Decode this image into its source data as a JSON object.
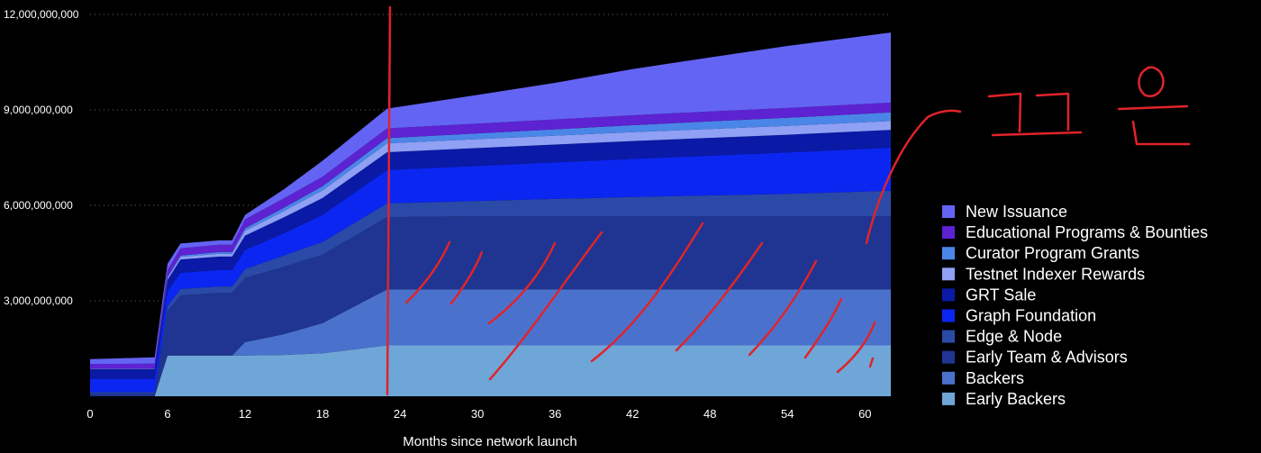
{
  "chart_data": {
    "type": "area",
    "stacked": true,
    "xlabel": "Months since network launch",
    "ylabel": "",
    "title": "",
    "xlim": [
      0,
      62
    ],
    "ylim": [
      0,
      12000000000
    ],
    "xticks": [
      0,
      6,
      12,
      18,
      24,
      30,
      36,
      42,
      48,
      54,
      60
    ],
    "yticks": [
      3000000000,
      6000000000,
      9000000000,
      12000000000
    ],
    "ytick_labels": [
      "3,000,000,000",
      "6,000,000,000",
      "9,000,000,000",
      "12,000,000,000"
    ],
    "grid": "horizontal dotted",
    "legend_position": "right",
    "x": [
      0,
      5,
      6,
      7,
      10,
      11,
      12,
      15,
      18,
      23,
      30,
      36,
      42,
      48,
      54,
      62
    ],
    "series": [
      {
        "name": "Early Backers",
        "color": "#6fa6d8",
        "values": [
          0,
          0,
          1280000000,
          1280000000,
          1280000000,
          1280000000,
          1280000000,
          1300000000,
          1350000000,
          1600000000,
          1600000000,
          1600000000,
          1600000000,
          1600000000,
          1600000000,
          1600000000
        ]
      },
      {
        "name": "Backers",
        "color": "#4a72cd",
        "values": [
          0,
          0,
          0,
          0,
          0,
          0,
          420000000,
          650000000,
          950000000,
          1760000000,
          1760000000,
          1760000000,
          1760000000,
          1760000000,
          1760000000,
          1760000000
        ]
      },
      {
        "name": "Early Team & Advisors",
        "color": "#1f3591",
        "values": [
          100000000,
          100000000,
          1400000000,
          1890000000,
          1970000000,
          1970000000,
          2020000000,
          2120000000,
          2150000000,
          2270000000,
          2300000000,
          2300000000,
          2300000000,
          2300000000,
          2300000000,
          2300000000
        ]
      },
      {
        "name": "Edge & Node",
        "color": "#2b4aa7",
        "values": [
          30000000,
          30000000,
          150000000,
          200000000,
          200000000,
          200000000,
          280000000,
          350000000,
          400000000,
          430000000,
          480000000,
          540000000,
          600000000,
          650000000,
          700000000,
          800000000
        ]
      },
      {
        "name": "Graph Foundation",
        "color": "#0c26f2",
        "values": [
          420000000,
          420000000,
          480000000,
          510000000,
          520000000,
          520000000,
          600000000,
          700000000,
          850000000,
          1050000000,
          1100000000,
          1150000000,
          1200000000,
          1250000000,
          1300000000,
          1350000000
        ]
      },
      {
        "name": "GRT Sale",
        "color": "#0a1aa6",
        "values": [
          300000000,
          300000000,
          350000000,
          420000000,
          420000000,
          420000000,
          450000000,
          500000000,
          530000000,
          560000000,
          560000000,
          560000000,
          560000000,
          560000000,
          560000000,
          560000000
        ]
      },
      {
        "name": "Testnet Indexer Rewards",
        "color": "#8fa0f5",
        "values": [
          10000000,
          10000000,
          60000000,
          80000000,
          90000000,
          90000000,
          150000000,
          200000000,
          240000000,
          280000000,
          280000000,
          280000000,
          280000000,
          280000000,
          280000000,
          280000000
        ]
      },
      {
        "name": "Curator Program Grants",
        "color": "#4a86e8",
        "values": [
          5000000,
          5000000,
          30000000,
          40000000,
          50000000,
          50000000,
          80000000,
          100000000,
          130000000,
          160000000,
          180000000,
          200000000,
          220000000,
          240000000,
          250000000,
          270000000
        ]
      },
      {
        "name": "Educational Programs & Bounties",
        "color": "#5d22d2",
        "values": [
          150000000,
          160000000,
          220000000,
          230000000,
          230000000,
          230000000,
          280000000,
          300000000,
          300000000,
          310000000,
          310000000,
          310000000,
          310000000,
          310000000,
          310000000,
          310000000
        ]
      },
      {
        "name": "New Issuance",
        "color": "#6464f4",
        "values": [
          150000000,
          200000000,
          200000000,
          150000000,
          140000000,
          140000000,
          140000000,
          280000000,
          500000000,
          620000000,
          900000000,
          1150000000,
          1450000000,
          1700000000,
          1950000000,
          2200000000
        ]
      }
    ]
  }
}
